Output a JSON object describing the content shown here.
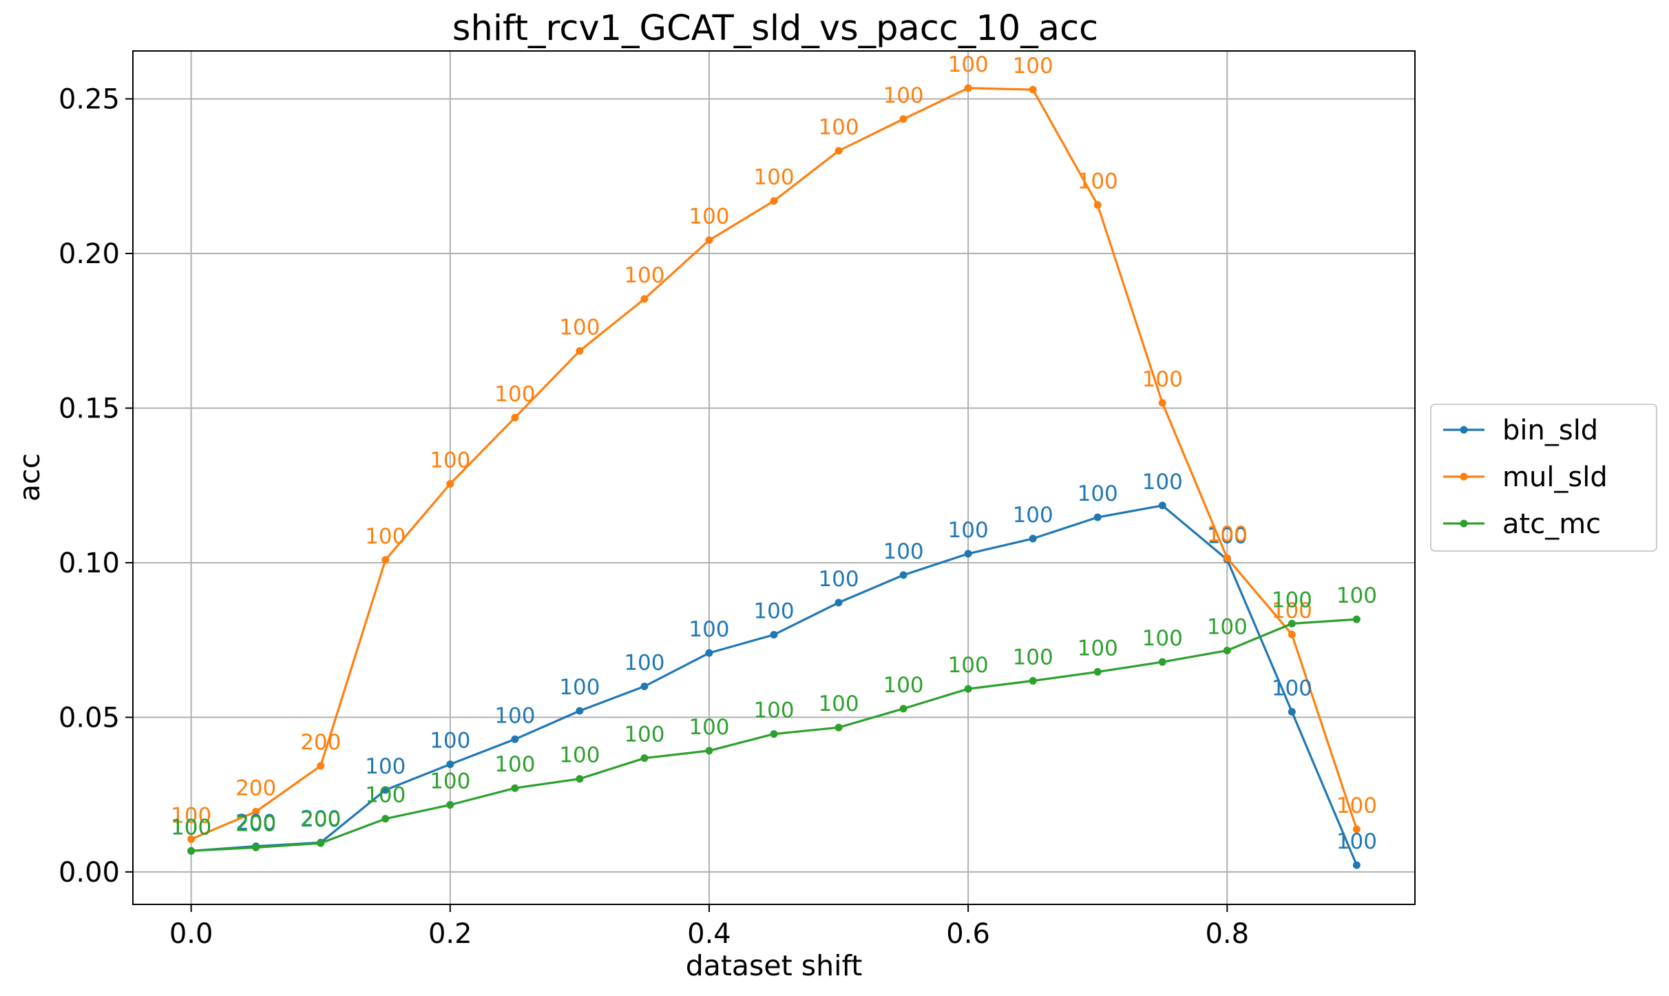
{
  "chart_data": {
    "type": "line",
    "title": "shift_rcv1_GCAT_sld_vs_pacc_10_acc",
    "xlabel": "dataset shift",
    "ylabel": "acc",
    "xlim": [
      -0.045,
      0.945
    ],
    "ylim": [
      -0.0105,
      0.2655
    ],
    "xticks": [
      0.0,
      0.2,
      0.4,
      0.6,
      0.8
    ],
    "xtick_labels": [
      "0.0",
      "0.2",
      "0.4",
      "0.6",
      "0.8"
    ],
    "yticks": [
      0.0,
      0.05,
      0.1,
      0.15,
      0.2,
      0.25
    ],
    "ytick_labels": [
      "0.00",
      "0.05",
      "0.10",
      "0.15",
      "0.20",
      "0.25"
    ],
    "grid": true,
    "legend_position": "center-right-outside",
    "x": [
      0.0,
      0.05,
      0.1,
      0.15,
      0.2,
      0.25,
      0.3,
      0.35,
      0.4,
      0.45,
      0.5,
      0.55,
      0.6,
      0.65,
      0.7,
      0.75,
      0.8,
      0.85,
      0.9
    ],
    "series": [
      {
        "name": "bin_sld",
        "color": "#1f77b4",
        "values": [
          0.0068,
          0.0083,
          0.0095,
          0.0265,
          0.0348,
          0.0429,
          0.0521,
          0.06,
          0.0708,
          0.0767,
          0.0871,
          0.096,
          0.1029,
          0.1078,
          0.1147,
          0.1185,
          0.101,
          0.0518,
          0.0022
        ],
        "labels": [
          "100",
          "200",
          "200",
          "100",
          "100",
          "100",
          "100",
          "100",
          "100",
          "100",
          "100",
          "100",
          "100",
          "100",
          "100",
          "100",
          "100",
          "100",
          "100"
        ]
      },
      {
        "name": "mul_sld",
        "color": "#ff7f0e",
        "values": [
          0.0106,
          0.0195,
          0.0343,
          0.1009,
          0.1255,
          0.1469,
          0.1685,
          0.1853,
          0.2043,
          0.217,
          0.2332,
          0.2435,
          0.2535,
          0.253,
          0.2157,
          0.1517,
          0.1015,
          0.0768,
          0.0138
        ],
        "labels": [
          "100",
          "200",
          "200",
          "100",
          "100",
          "100",
          "100",
          "100",
          "100",
          "100",
          "100",
          "100",
          "100",
          "100",
          "100",
          "100",
          "100",
          "100",
          "100"
        ]
      },
      {
        "name": "atc_mc",
        "color": "#2ca02c",
        "values": [
          0.0068,
          0.0079,
          0.0093,
          0.0172,
          0.0217,
          0.0271,
          0.0301,
          0.0368,
          0.0392,
          0.0446,
          0.0467,
          0.0528,
          0.0592,
          0.0618,
          0.0647,
          0.0679,
          0.0716,
          0.0803,
          0.0817
        ],
        "labels": [
          "100",
          "200",
          "200",
          "100",
          "100",
          "100",
          "100",
          "100",
          "100",
          "100",
          "100",
          "100",
          "100",
          "100",
          "100",
          "100",
          "100",
          "100",
          "100"
        ]
      }
    ]
  }
}
